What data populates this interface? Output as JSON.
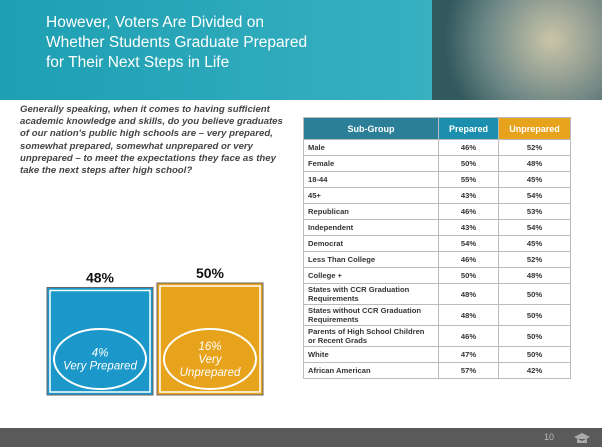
{
  "header": {
    "title_lines": [
      "However, Voters Are Divided on",
      "Whether Students Graduate Prepared",
      "for Their Next Steps in Life"
    ]
  },
  "question": "Generally speaking, when it comes to having sufficient academic knowledge and skills, do you believe graduates of our nation's public high schools are – very prepared, somewhat prepared, somewhat unprepared or very unprepared – to meet the expectations they face as they take the next steps after high school?",
  "chart_data": {
    "type": "bar",
    "categories": [
      null,
      null
    ],
    "values": [
      48,
      50
    ],
    "value_labels": [
      "48%",
      "50%"
    ],
    "colors": [
      "#1b98c9",
      "#e8a31c"
    ],
    "ylim": [
      0,
      50
    ],
    "inner_labels": [
      [
        "4%",
        "Very Prepared"
      ],
      [
        "16%",
        "Very",
        "Unprepared"
      ]
    ]
  },
  "table": {
    "columns": [
      "Sub-Group",
      "Prepared",
      "Unprepared"
    ],
    "rows": [
      [
        "Male",
        "46%",
        "52%"
      ],
      [
        "Female",
        "50%",
        "48%"
      ],
      [
        "18-44",
        "55%",
        "45%"
      ],
      [
        "45+",
        "43%",
        "54%"
      ],
      [
        "Republican",
        "46%",
        "53%"
      ],
      [
        "Independent",
        "43%",
        "54%"
      ],
      [
        "Democrat",
        "54%",
        "45%"
      ],
      [
        "Less Than College",
        "46%",
        "52%"
      ],
      [
        "College +",
        "50%",
        "48%"
      ],
      [
        "States with CCR Graduation Requirements",
        "48%",
        "50%"
      ],
      [
        "States without CCR Graduation Requirements",
        "48%",
        "50%"
      ],
      [
        "Parents of High School Children or Recent Grads",
        "46%",
        "50%"
      ],
      [
        "White",
        "47%",
        "50%"
      ],
      [
        "African American",
        "57%",
        "42%"
      ]
    ]
  },
  "footer": {
    "page": "10"
  }
}
